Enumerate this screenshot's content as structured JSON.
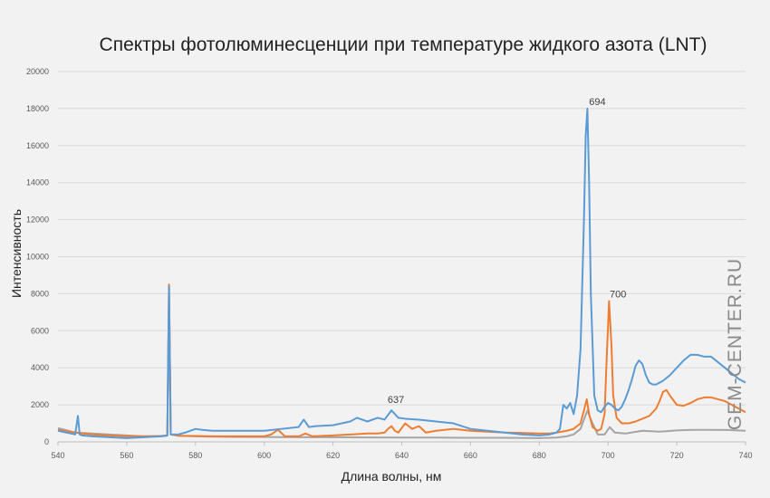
{
  "chart_data": {
    "type": "line",
    "title": "Спектры фотолюминесценции при температуре жидкого азота (LNT)",
    "xlabel": "Длина волны, нм",
    "ylabel": "Интенсивность",
    "xlim": [
      540,
      740
    ],
    "ylim": [
      0,
      20000
    ],
    "xticks": [
      540,
      560,
      580,
      600,
      620,
      640,
      660,
      680,
      700,
      720,
      740
    ],
    "yticks": [
      0,
      2000,
      4000,
      6000,
      8000,
      10000,
      12000,
      14000,
      16000,
      18000,
      20000
    ],
    "grid": true,
    "legend": "none",
    "annotations": [
      {
        "x": 637,
        "y": 1700,
        "text": "637"
      },
      {
        "x": 694,
        "y": 18000,
        "text": "694"
      },
      {
        "x": 700,
        "y": 7600,
        "text": "700"
      }
    ],
    "series": [
      {
        "color": "#5b9bd5",
        "x": [
          540,
          545,
          545.8,
          546.3,
          547,
          550,
          555,
          560,
          565,
          570,
          571.8,
          572.3,
          572.8,
          575,
          577,
          580,
          582,
          585,
          590,
          595,
          600,
          605,
          610,
          611.5,
          613,
          615,
          620,
          625,
          627,
          630,
          633,
          635,
          637,
          639,
          641,
          645,
          650,
          655,
          660,
          665,
          670,
          675,
          680,
          683,
          685,
          686,
          687,
          688,
          689,
          690,
          691,
          692,
          693,
          693.5,
          694,
          694.5,
          695,
          696,
          697,
          698,
          699,
          700,
          701,
          702,
          703,
          704,
          705,
          706,
          707,
          708,
          709,
          710,
          711,
          712,
          713,
          714,
          715,
          716,
          718,
          720,
          722,
          724,
          726,
          728,
          730,
          732,
          734,
          736,
          738,
          740
        ],
        "y": [
          600,
          400,
          1400,
          400,
          350,
          300,
          250,
          200,
          250,
          300,
          350,
          8400,
          400,
          400,
          500,
          700,
          650,
          600,
          600,
          600,
          600,
          700,
          800,
          1200,
          800,
          850,
          900,
          1100,
          1300,
          1100,
          1300,
          1200,
          1700,
          1300,
          1250,
          1200,
          1100,
          1000,
          700,
          600,
          500,
          400,
          350,
          400,
          500,
          700,
          2000,
          1800,
          2100,
          1500,
          2500,
          5000,
          12000,
          16500,
          18000,
          14000,
          8000,
          2500,
          1700,
          1600,
          1900,
          2100,
          2000,
          1800,
          1700,
          1900,
          2300,
          2800,
          3400,
          4100,
          4400,
          4200,
          3600,
          3200,
          3100,
          3100,
          3200,
          3300,
          3600,
          4000,
          4400,
          4700,
          4700,
          4600,
          4600,
          4300,
          4000,
          3700,
          3400,
          3200
        ]
      },
      {
        "color": "#ed7d31",
        "x": [
          540,
          545,
          550,
          555,
          560,
          565,
          570,
          571.8,
          572.3,
          572.8,
          575,
          580,
          585,
          590,
          595,
          600,
          602,
          604,
          606,
          610,
          612,
          614,
          620,
          625,
          630,
          633,
          635,
          636,
          637,
          638,
          639,
          641,
          643,
          645,
          647,
          650,
          655,
          660,
          665,
          670,
          675,
          680,
          683,
          685,
          688,
          690,
          692,
          693,
          693.8,
          694.5,
          695.5,
          697,
          698,
          699,
          699.5,
          700.3,
          701,
          701.5,
          702.5,
          704,
          706,
          708,
          710,
          712,
          714,
          715,
          716,
          717,
          718,
          720,
          722,
          724,
          726,
          728,
          730,
          732,
          734,
          736,
          738,
          740
        ],
        "y": [
          650,
          500,
          400,
          350,
          300,
          300,
          320,
          350,
          8500,
          400,
          330,
          320,
          300,
          300,
          300,
          300,
          400,
          650,
          300,
          300,
          450,
          300,
          350,
          400,
          450,
          450,
          500,
          700,
          850,
          600,
          500,
          1000,
          700,
          850,
          500,
          600,
          700,
          600,
          550,
          500,
          480,
          450,
          450,
          500,
          600,
          700,
          1000,
          1700,
          2300,
          1500,
          800,
          600,
          700,
          1500,
          4000,
          7600,
          5200,
          2500,
          1300,
          1000,
          1000,
          1100,
          1250,
          1400,
          1800,
          2200,
          2700,
          2800,
          2500,
          2000,
          1950,
          2100,
          2300,
          2400,
          2400,
          2300,
          2200,
          2000,
          1800,
          1600
        ]
      },
      {
        "color": "#a5a5a5",
        "x": [
          540,
          545,
          550,
          555,
          560,
          565,
          570,
          571.8,
          572.3,
          572.8,
          575,
          580,
          585,
          590,
          595,
          600,
          610,
          620,
          630,
          640,
          650,
          660,
          670,
          680,
          685,
          688,
          690,
          692,
          693,
          694,
          695,
          697,
          699,
          700.5,
          702,
          705,
          710,
          715,
          720,
          725,
          730,
          735,
          740
        ],
        "y": [
          750,
          500,
          450,
          400,
          350,
          300,
          300,
          330,
          8300,
          400,
          330,
          300,
          280,
          270,
          260,
          260,
          250,
          250,
          240,
          230,
          230,
          220,
          220,
          200,
          230,
          300,
          400,
          700,
          1200,
          1700,
          1200,
          400,
          400,
          800,
          500,
          450,
          600,
          550,
          620,
          650,
          650,
          640,
          600
        ]
      }
    ]
  },
  "watermark": "GEM-CENTER.RU"
}
